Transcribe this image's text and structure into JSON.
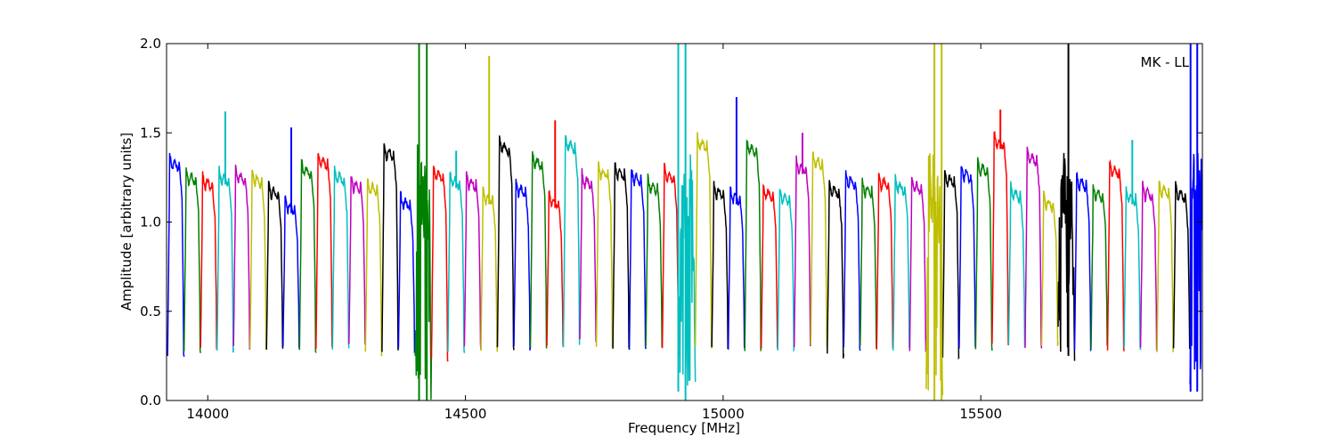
{
  "chart_data": {
    "type": "line",
    "title": "",
    "xlabel": "Frequency [MHz]",
    "ylabel": "Amplitude [arbitrary units]",
    "xlim": [
      13920,
      15930
    ],
    "ylim": [
      0.0,
      2.0
    ],
    "x_ticks": [
      14000,
      14500,
      15000,
      15500
    ],
    "y_ticks": [
      "0.0",
      "0.5",
      "1.0",
      "1.5",
      "2.0"
    ],
    "annotation": "MK - LL",
    "annotation_position": "top-right",
    "grid": false,
    "colors": [
      "#0000ff",
      "#008000",
      "#ff0000",
      "#00bfbf",
      "#bf00bf",
      "#bfbf00",
      "#000000"
    ],
    "channel_width_mhz": 32,
    "channel_start_mhz": 13922,
    "channels": [
      {
        "peak": 1.39,
        "base": 0.25,
        "color": "#0000ff"
      },
      {
        "peak": 1.31,
        "base": 0.28,
        "color": "#008000"
      },
      {
        "peak": 1.28,
        "base": 0.3,
        "color": "#ff0000"
      },
      {
        "peak": 1.31,
        "base": 0.28,
        "color": "#00bfbf",
        "spike": 1.62
      },
      {
        "peak": 1.31,
        "base": 0.3,
        "color": "#bf00bf"
      },
      {
        "peak": 1.3,
        "base": 0.29,
        "color": "#bfbf00"
      },
      {
        "peak": 1.23,
        "base": 0.29,
        "color": "#000000"
      },
      {
        "peak": 1.15,
        "base": 0.3,
        "color": "#0000ff",
        "spike": 1.53
      },
      {
        "peak": 1.35,
        "base": 0.28,
        "color": "#008000"
      },
      {
        "peak": 1.4,
        "base": 0.3,
        "color": "#ff0000"
      },
      {
        "peak": 1.31,
        "base": 0.3,
        "color": "#00bfbf"
      },
      {
        "peak": 1.27,
        "base": 0.31,
        "color": "#bf00bf"
      },
      {
        "peak": 1.25,
        "base": 0.26,
        "color": "#bfbf00"
      },
      {
        "peak": 1.45,
        "base": 0.28,
        "color": "#000000"
      },
      {
        "peak": 1.17,
        "base": 0.28,
        "color": "#0000ff"
      },
      {
        "peak": 1.23,
        "base": 0.05,
        "color": "#008000",
        "noisy": true
      },
      {
        "peak": 1.33,
        "base": 0.22,
        "color": "#ff0000"
      },
      {
        "peak": 1.29,
        "base": 0.28,
        "color": "#00bfbf",
        "spike": 1.4
      },
      {
        "peak": 1.28,
        "base": 0.3,
        "color": "#bf00bf"
      },
      {
        "peak": 1.2,
        "base": 0.28,
        "color": "#bfbf00",
        "spike": 1.93
      },
      {
        "peak": 1.48,
        "base": 0.29,
        "color": "#000000"
      },
      {
        "peak": 1.24,
        "base": 0.29,
        "color": "#0000ff"
      },
      {
        "peak": 1.4,
        "base": 0.29,
        "color": "#008000"
      },
      {
        "peak": 1.18,
        "base": 0.3,
        "color": "#ff0000",
        "spike": 1.57
      },
      {
        "peak": 1.49,
        "base": 0.31,
        "color": "#00bfbf"
      },
      {
        "peak": 1.29,
        "base": 0.33,
        "color": "#bf00bf"
      },
      {
        "peak": 1.34,
        "base": 0.31,
        "color": "#bfbf00"
      },
      {
        "peak": 1.34,
        "base": 0.3,
        "color": "#000000"
      },
      {
        "peak": 1.31,
        "base": 0.3,
        "color": "#0000ff"
      },
      {
        "peak": 1.26,
        "base": 0.31,
        "color": "#008000"
      },
      {
        "peak": 1.32,
        "base": 0.3,
        "color": "#ff0000"
      },
      {
        "peak": 1.2,
        "base": 0.08,
        "color": "#00bfbf",
        "noisy": true
      },
      {
        "peak": 1.5,
        "base": 0.3,
        "color": "#bfbf00"
      },
      {
        "peak": 1.23,
        "base": 0.29,
        "color": "#000000"
      },
      {
        "peak": 1.2,
        "base": 0.3,
        "color": "#0000ff",
        "spike": 1.7
      },
      {
        "peak": 1.47,
        "base": 0.29,
        "color": "#008000"
      },
      {
        "peak": 1.22,
        "base": 0.3,
        "color": "#ff0000"
      },
      {
        "peak": 1.2,
        "base": 0.29,
        "color": "#00bfbf"
      },
      {
        "peak": 1.37,
        "base": 0.31,
        "color": "#bf00bf",
        "spike": 1.5
      },
      {
        "peak": 1.4,
        "base": 0.3,
        "color": "#bfbf00"
      },
      {
        "peak": 1.24,
        "base": 0.25,
        "color": "#000000"
      },
      {
        "peak": 1.29,
        "base": 0.29,
        "color": "#0000ff"
      },
      {
        "peak": 1.24,
        "base": 0.3,
        "color": "#008000"
      },
      {
        "peak": 1.28,
        "base": 0.29,
        "color": "#ff0000"
      },
      {
        "peak": 1.26,
        "base": 0.29,
        "color": "#00bfbf"
      },
      {
        "peak": 1.26,
        "base": 0.29,
        "color": "#bf00bf"
      },
      {
        "peak": 1.2,
        "base": 0.05,
        "color": "#bfbf00",
        "noisy": true
      },
      {
        "peak": 1.3,
        "base": 0.24,
        "color": "#000000"
      },
      {
        "peak": 1.33,
        "base": 0.29,
        "color": "#0000ff"
      },
      {
        "peak": 1.36,
        "base": 0.29,
        "color": "#008000"
      },
      {
        "peak": 1.51,
        "base": 0.31,
        "color": "#ff0000",
        "spike": 1.63
      },
      {
        "peak": 1.22,
        "base": 0.3,
        "color": "#00bfbf"
      },
      {
        "peak": 1.42,
        "base": 0.3,
        "color": "#bf00bf"
      },
      {
        "peak": 1.17,
        "base": 0.31,
        "color": "#bfbf00"
      },
      {
        "peak": 1.25,
        "base": 0.27,
        "color": "#000000",
        "noisy": true
      },
      {
        "peak": 1.28,
        "base": 0.28,
        "color": "#0000ff"
      },
      {
        "peak": 1.22,
        "base": 0.3,
        "color": "#008000"
      },
      {
        "peak": 1.35,
        "base": 0.29,
        "color": "#ff0000"
      },
      {
        "peak": 1.2,
        "base": 0.29,
        "color": "#00bfbf",
        "spike": 1.46
      },
      {
        "peak": 1.22,
        "base": 0.29,
        "color": "#bf00bf"
      },
      {
        "peak": 1.24,
        "base": 0.26,
        "color": "#bfbf00"
      },
      {
        "peak": 1.22,
        "base": 0.29,
        "color": "#000000"
      },
      {
        "peak": 1.24,
        "base": 0.15,
        "color": "#0000ff",
        "noisy": true
      }
    ],
    "vertical_spikes": [
      {
        "x": 14410,
        "top": 2.0,
        "bottom": 0.0,
        "color": "#008000"
      },
      {
        "x": 14425,
        "top": 2.0,
        "bottom": 0.0,
        "color": "#008000"
      },
      {
        "x": 14913,
        "top": 2.0,
        "bottom": 0.05,
        "color": "#00bfbf"
      },
      {
        "x": 14927,
        "top": 2.0,
        "bottom": 0.0,
        "color": "#00bfbf"
      },
      {
        "x": 15410,
        "top": 2.0,
        "bottom": 0.0,
        "color": "#bfbf00"
      },
      {
        "x": 15424,
        "top": 2.0,
        "bottom": 0.0,
        "color": "#bfbf00"
      },
      {
        "x": 15670,
        "top": 2.0,
        "bottom": 0.25,
        "color": "#000000"
      },
      {
        "x": 15907,
        "top": 2.0,
        "bottom": 0.05,
        "color": "#0000ff"
      },
      {
        "x": 15920,
        "top": 2.0,
        "bottom": 0.05,
        "color": "#0000ff"
      }
    ]
  }
}
